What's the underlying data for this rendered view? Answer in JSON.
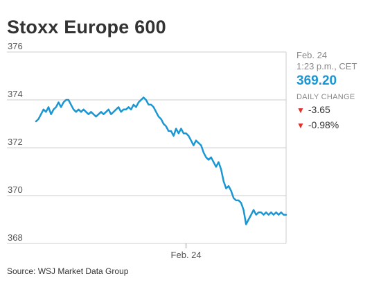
{
  "title": "Stoxx Europe 600",
  "source": "Source: WSJ Market Data Group",
  "sidebar": {
    "date": "Feb. 24",
    "time": "1:23 p.m., CET",
    "price": "369.20",
    "daily_change_label": "DAILY CHANGE",
    "change_points": "-3.65",
    "change_percent": "-0.98%",
    "down_color": "#e0302b",
    "price_color": "#1a96d2"
  },
  "chart_data": {
    "type": "line",
    "title": "Stoxx Europe 600",
    "xlabel": "",
    "ylabel": "",
    "ylim": [
      368,
      376
    ],
    "yticks": [
      368,
      370,
      372,
      374,
      376
    ],
    "xtick_labels": [
      {
        "label": "Feb. 24",
        "x": 0.6
      }
    ],
    "grid": true,
    "line_color": "#1a96d2",
    "series": [
      {
        "x": [
          0.0,
          0.01,
          0.02,
          0.03,
          0.04,
          0.05,
          0.06,
          0.07,
          0.08,
          0.09,
          0.1,
          0.11,
          0.12,
          0.13,
          0.14,
          0.15,
          0.16,
          0.17,
          0.18,
          0.19,
          0.2,
          0.21,
          0.22,
          0.23,
          0.24,
          0.25,
          0.26,
          0.27,
          0.28,
          0.29,
          0.3,
          0.31,
          0.32,
          0.33,
          0.34,
          0.35,
          0.36,
          0.37,
          0.38,
          0.39,
          0.4,
          0.41,
          0.42,
          0.43,
          0.44,
          0.45,
          0.46,
          0.47,
          0.48,
          0.49,
          0.5,
          0.51,
          0.52,
          0.53,
          0.54,
          0.55,
          0.56,
          0.57,
          0.58,
          0.59,
          0.6,
          0.61,
          0.62,
          0.63,
          0.64,
          0.65,
          0.66,
          0.67,
          0.68,
          0.69,
          0.7,
          0.71,
          0.72,
          0.73,
          0.74,
          0.75,
          0.76,
          0.77,
          0.78,
          0.79,
          0.8,
          0.81,
          0.82,
          0.83,
          0.84,
          0.85,
          0.86,
          0.87,
          0.88,
          0.89,
          0.9,
          0.91,
          0.92,
          0.93,
          0.94,
          0.95,
          0.96,
          0.97,
          0.98,
          0.99,
          1.0
        ],
        "y": [
          373.1,
          373.2,
          373.4,
          373.6,
          373.5,
          373.7,
          373.4,
          373.6,
          373.7,
          373.9,
          373.7,
          373.9,
          374.0,
          374.0,
          373.8,
          373.6,
          373.5,
          373.6,
          373.5,
          373.6,
          373.5,
          373.4,
          373.5,
          373.4,
          373.3,
          373.4,
          373.5,
          373.4,
          373.5,
          373.6,
          373.4,
          373.5,
          373.6,
          373.7,
          373.5,
          373.6,
          373.6,
          373.7,
          373.6,
          373.8,
          373.7,
          373.9,
          374.0,
          374.1,
          374.0,
          373.8,
          373.8,
          373.7,
          373.5,
          373.3,
          373.2,
          373.0,
          372.9,
          372.7,
          372.7,
          372.5,
          372.8,
          372.6,
          372.8,
          372.6,
          372.6,
          372.5,
          372.3,
          372.1,
          372.3,
          372.2,
          372.1,
          371.8,
          371.6,
          371.5,
          371.6,
          371.4,
          371.2,
          371.4,
          371.1,
          370.6,
          370.3,
          370.4,
          370.2,
          369.9,
          369.8,
          369.8,
          369.7,
          369.4,
          368.8,
          369.0,
          369.2,
          369.4,
          369.2,
          369.3,
          369.3,
          369.2,
          369.3,
          369.2,
          369.3,
          369.2,
          369.3,
          369.2,
          369.3,
          369.2,
          369.2
        ]
      }
    ]
  }
}
